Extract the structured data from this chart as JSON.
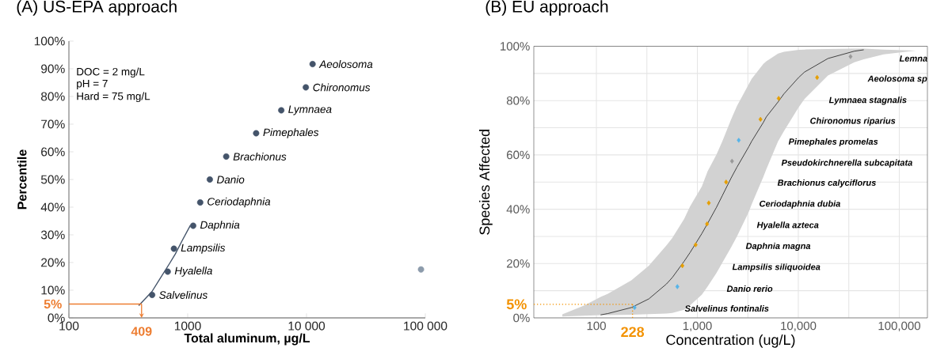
{
  "chart_data": [
    {
      "type": "scatter",
      "title": "(A) US-EPA approach",
      "xlabel": "Total aluminum, µg/L",
      "ylabel": "Percentile",
      "log": "x",
      "marker": "circle",
      "xlim": [
        100,
        100000
      ],
      "xticks": [
        100,
        1000,
        {
          "value": 10000,
          "label": "10 000"
        },
        {
          "value": 100000,
          "label": "100 000"
        }
      ],
      "ylim": [
        0,
        100
      ],
      "yticks": [
        {
          "value": 0,
          "label": "0%"
        },
        {
          "value": 10,
          "label": "10%"
        },
        {
          "value": 20,
          "label": "20%"
        },
        {
          "value": 30,
          "label": "30%"
        },
        {
          "value": 40,
          "label": "40%"
        },
        {
          "value": 50,
          "label": "50%"
        },
        {
          "value": 60,
          "label": "60%"
        },
        {
          "value": 70,
          "label": "70%"
        },
        {
          "value": 80,
          "label": "80%"
        },
        {
          "value": 90,
          "label": "90%"
        },
        {
          "value": 100,
          "label": "100%"
        }
      ],
      "series": [
        {
          "type": "line",
          "marker": "none",
          "color": "#44546a",
          "x": [
            387,
            500,
            599,
            700,
            787,
            900,
            1052
          ],
          "values": [
            4.4,
            9.5,
            14.9,
            19.5,
            23.1,
            28,
            33.4
          ]
        },
        {
          "color": "#44546a",
          "x": [
            502,
            679,
            766,
            1112,
            1274,
            1535,
            2109,
            3767,
            6131,
            9869,
            11250
          ],
          "values": [
            8.3,
            16.7,
            25,
            33.3,
            41.7,
            50,
            58.3,
            66.7,
            75,
            83.3,
            91.7
          ]
        },
        {
          "color": "#8c9bab",
          "x": [
            92000
          ],
          "values": [
            17.5
          ]
        }
      ],
      "ref_lines": [
        {
          "axis": "y",
          "value": 5,
          "label": "5%",
          "color": "#ed7d31",
          "line_style": "solid"
        },
        {
          "axis": "x",
          "value": 409,
          "label": "409",
          "color": "#ed7d31",
          "line_style": "solid"
        }
      ],
      "annotations": [
        "DOC = 2 mg/L",
        "pH = 7",
        "Hard = 75 mg/L",
        {
          "text": "Salvelinus",
          "x": 502,
          "y": 8.3
        },
        {
          "text": "Hyalella",
          "x": 679,
          "y": 16.7
        },
        {
          "text": "Lampsilis",
          "x": 766,
          "y": 25
        },
        {
          "text": "Daphnia",
          "x": 1112,
          "y": 33.3
        },
        {
          "text": "Ceriodaphnia",
          "x": 1274,
          "y": 41.7
        },
        {
          "text": "Danio",
          "x": 1535,
          "y": 50
        },
        {
          "text": "Brachionus",
          "x": 2109,
          "y": 58.3
        },
        {
          "text": "Pimephales",
          "x": 3767,
          "y": 66.7
        },
        {
          "text": "Lymnaea",
          "x": 6131,
          "y": 75
        },
        {
          "text": "Chironomus",
          "x": 9869,
          "y": 83.3
        },
        {
          "text": "Aeolosoma",
          "x": 11250,
          "y": 91.7
        }
      ]
    },
    {
      "type": "scatter",
      "title": "(B) EU approach",
      "xlabel": "Concentration (ug/L)",
      "ylabel": "Species Affected",
      "log": "x",
      "marker": "diamond",
      "grid": true,
      "xlim": [
        24,
        190000
      ],
      "xticks": [
        100,
        {
          "value": 316.2,
          "label": null
        },
        {
          "value": 1000,
          "label": "1,000"
        },
        {
          "value": 3162,
          "label": null
        },
        {
          "value": 10000,
          "label": "10,000"
        },
        {
          "value": 31623,
          "label": null
        },
        {
          "value": 100000,
          "label": "100,000"
        }
      ],
      "ylim": [
        0,
        100
      ],
      "yticks": [
        {
          "value": 0,
          "label": "0%"
        },
        {
          "value": 10,
          "label": null
        },
        {
          "value": 20,
          "label": "20%"
        },
        {
          "value": 30,
          "label": null
        },
        {
          "value": 40,
          "label": "40%"
        },
        {
          "value": 50,
          "label": null
        },
        {
          "value": 60,
          "label": "60%"
        },
        {
          "value": 70,
          "label": null
        },
        {
          "value": 80,
          "label": "80%"
        },
        {
          "value": 90,
          "label": null
        },
        {
          "value": 100,
          "label": "100%"
        }
      ],
      "series": [
        {
          "type": "line",
          "marker": "none",
          "color": "#333333",
          "x": [
            46,
            76,
            110,
            130,
            222,
            331,
            495,
            566,
            739,
            845,
            1106,
            1265,
            1546,
            1767,
            2160,
            2468,
            3230,
            3450,
            4510,
            4820,
            6300,
            7210,
            10070,
            11510,
            19670,
            35900,
            44460,
            70100,
            146600
          ],
          "values": [
            null,
            null,
            1.1,
            1.6,
            3.8,
            7,
            12.5,
            14.9,
            20.8,
            24,
            31,
            34.8,
            40.7,
            45,
            51.5,
            55.5,
            63,
            65,
            72,
            74,
            79.5,
            82.5,
            88.5,
            90.5,
            95.5,
            98.2,
            98.7,
            null,
            null
          ],
          "upper": [
            1.3,
            4.6,
            7.7,
            8.9,
            13.8,
            19.2,
            26.7,
            29.5,
            36.4,
            41,
            48.3,
            54,
            60.1,
            65,
            73.1,
            78,
            86,
            88,
            93.5,
            94.5,
            97.3,
            98,
            98.7,
            98.8,
            99,
            99.1,
            99.1,
            98.8,
            98.4
          ],
          "lower": [
            0.5,
            0.8,
            1,
            1,
            1.2,
            1.4,
            1.6,
            1.8,
            3,
            4.6,
            8.5,
            11.6,
            16.5,
            20.3,
            26,
            30,
            39,
            41.8,
            52,
            54.7,
            65,
            68.8,
            77.5,
            80.6,
            89.2,
            94.1,
            95.2,
            97,
            98.4
          ]
        },
        {
          "color": "#56b4e9",
          "x": [
            239,
            634,
            2570
          ],
          "values": [
            3.8,
            11.5,
            65.4
          ]
        },
        {
          "color": "#e69f00",
          "x": [
            711,
            962,
            1248,
            1298,
            1927,
            4220,
            6390,
            15350
          ],
          "values": [
            19.2,
            26.9,
            34.6,
            42.3,
            50,
            73.1,
            80.8,
            88.5
          ]
        },
        {
          "color": "#999999",
          "x": [
            2204,
            32900
          ],
          "values": [
            57.7,
            96.2
          ]
        }
      ],
      "ref_lines": [
        {
          "axis": "y",
          "value": 5,
          "label": "5%",
          "color": "#f39200",
          "line_style": "dotted"
        },
        {
          "axis": "x",
          "value": 228,
          "label": "228",
          "color": "#f39200",
          "line_style": "dotted"
        }
      ],
      "annotations": [
        "Salvelinus fontinalis",
        "Danio rerio",
        "Lampsilis siliquoidea",
        "Daphnia magna",
        "Hyalella azteca",
        "Ceriodaphnia dubia",
        "Brachionus calyciflorus",
        "Pseudokirchnerella subcapitata",
        "Pimephales promelas",
        "Chironomus riparius",
        "Lymnaea stagnalis",
        "Aeolosoma sp",
        "Lemna"
      ]
    }
  ]
}
